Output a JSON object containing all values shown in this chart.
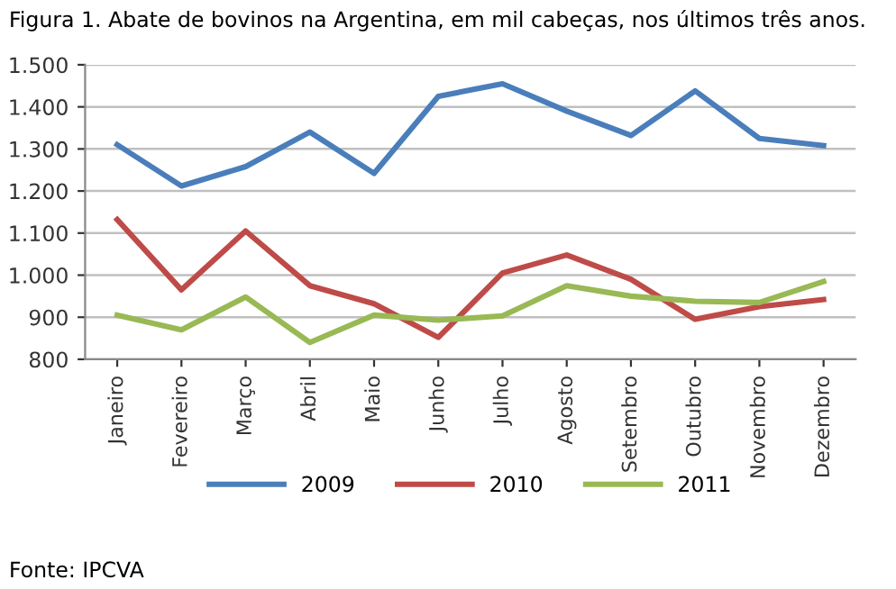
{
  "chart_data": {
    "type": "line",
    "title": "Figura 1. Abate de bovinos na Argentina, em mil cabeças, nos últimos três anos.",
    "categories": [
      "Janeiro",
      "Fevereiro",
      "Março",
      "Abril",
      "Maio",
      "Junho",
      "Julho",
      "Agosto",
      "Setembro",
      "Outubro",
      "Novembro",
      "Dezembro"
    ],
    "series": [
      {
        "name": "2009",
        "color": "#4a7ebb",
        "values": [
          1310,
          1212,
          1258,
          1340,
          1242,
          1425,
          1455,
          1390,
          1332,
          1438,
          1325,
          1308
        ]
      },
      {
        "name": "2010",
        "color": "#be4b48",
        "values": [
          1132,
          965,
          1105,
          975,
          932,
          852,
          1005,
          1048,
          990,
          895,
          925,
          942
        ]
      },
      {
        "name": "2011",
        "color": "#98b954",
        "values": [
          905,
          870,
          948,
          840,
          905,
          893,
          903,
          975,
          950,
          938,
          935,
          985
        ]
      }
    ],
    "ylim": [
      800,
      1500
    ],
    "yticks": [
      {
        "value": 800,
        "label": "800"
      },
      {
        "value": 900,
        "label": "900"
      },
      {
        "value": 1000,
        "label": "1.000"
      },
      {
        "value": 1100,
        "label": "1.100"
      },
      {
        "value": 1200,
        "label": "1.200"
      },
      {
        "value": 1300,
        "label": "1.300"
      },
      {
        "value": 1400,
        "label": "1.400"
      },
      {
        "value": 1500,
        "label": "1.500"
      }
    ],
    "grid": "y",
    "legend": "bottom",
    "marker": "none",
    "line_style": "solid",
    "annotations": [
      "Fonte: IPCVA"
    ]
  }
}
